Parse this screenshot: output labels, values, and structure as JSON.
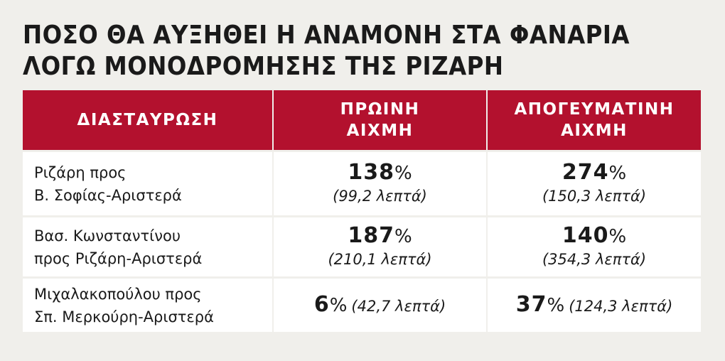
{
  "title": {
    "line1": "ΠΟΣΟ ΘΑ ΑΥΞΗΘΕΙ Η ΑΝΑΜΟΝΗ ΣΤΑ ΦΑΝΑΡΙΑ",
    "line2": "ΛΟΓΩ ΜΟΝΟΔΡΟΜΗΣΗΣ ΤΗΣ ΡΙΖΑΡΗ"
  },
  "colors": {
    "header_bg": "#b3112e",
    "page_bg": "#f0efeb",
    "cell_bg": "#ffffff"
  },
  "table": {
    "headers": {
      "crossing": "ΔΙΑΣΤΑΥΡΩΣΗ",
      "morning_1": "ΠΡΩΙΝΗ",
      "morning_2": "ΑΙΧΜΗ",
      "afternoon_1": "ΑΠΟΓΕΥΜΑΤΙΝΗ",
      "afternoon_2": "ΑΙΧΜΗ"
    },
    "rows": [
      {
        "crossing_1": "Ριζάρη προς",
        "crossing_2": "Β. Σοφίας-Αριστερά",
        "morning_pct": "138",
        "morning_min": "(99,2 λεπτά)",
        "afternoon_pct": "274",
        "afternoon_min": "(150,3 λεπτά)"
      },
      {
        "crossing_1": "Βασ. Κωνσταντίνου",
        "crossing_2": "προς Ριζάρη-Αριστερά",
        "morning_pct": "187",
        "morning_min": "(210,1 λεπτά)",
        "afternoon_pct": "140",
        "afternoon_min": "(354,3 λεπτά)"
      },
      {
        "crossing_1": "Μιχαλακοπούλου προς",
        "crossing_2": "Σπ. Μερκούρη-Αριστερά",
        "morning_pct": "6",
        "morning_min": "(42,7 λεπτά)",
        "afternoon_pct": "37",
        "afternoon_min": "(124,3 λεπτά)"
      }
    ],
    "percent_symbol": "%"
  }
}
